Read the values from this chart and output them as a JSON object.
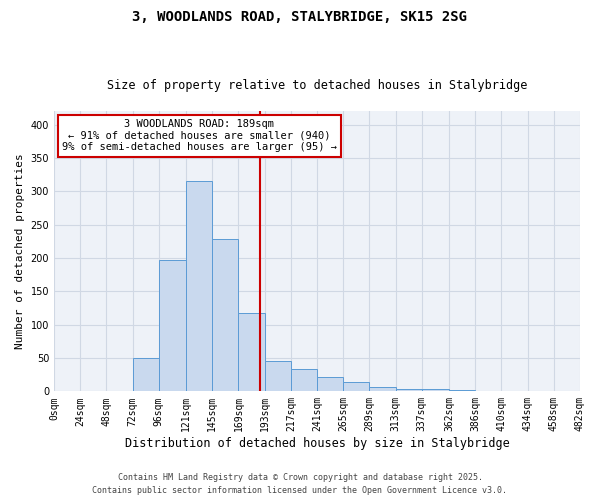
{
  "title": "3, WOODLANDS ROAD, STALYBRIDGE, SK15 2SG",
  "subtitle": "Size of property relative to detached houses in Stalybridge",
  "xlabel": "Distribution of detached houses by size in Stalybridge",
  "ylabel": "Number of detached properties",
  "bar_edges": [
    0,
    24,
    48,
    72,
    96,
    121,
    145,
    169,
    193,
    217,
    241,
    265,
    289,
    313,
    337,
    362,
    386,
    410,
    434,
    458,
    482
  ],
  "bar_heights": [
    0,
    0,
    0,
    50,
    197,
    316,
    229,
    117,
    46,
    33,
    22,
    14,
    7,
    3,
    4,
    2,
    1,
    0,
    0,
    1
  ],
  "bar_color": "#c9d9ee",
  "bar_edge_color": "#5b9bd5",
  "vline_x": 189,
  "vline_color": "#cc0000",
  "annotation_title": "3 WOODLANDS ROAD: 189sqm",
  "annotation_line2": "← 91% of detached houses are smaller (940)",
  "annotation_line3": "9% of semi-detached houses are larger (95) →",
  "annotation_box_color": "#cc0000",
  "xlim": [
    0,
    482
  ],
  "ylim": [
    0,
    420
  ],
  "yticks": [
    0,
    50,
    100,
    150,
    200,
    250,
    300,
    350,
    400
  ],
  "xtick_labels": [
    "0sqm",
    "24sqm",
    "48sqm",
    "72sqm",
    "96sqm",
    "121sqm",
    "145sqm",
    "169sqm",
    "193sqm",
    "217sqm",
    "241sqm",
    "265sqm",
    "289sqm",
    "313sqm",
    "337sqm",
    "362sqm",
    "386sqm",
    "410sqm",
    "434sqm",
    "458sqm",
    "482sqm"
  ],
  "xtick_positions": [
    0,
    24,
    48,
    72,
    96,
    121,
    145,
    169,
    193,
    217,
    241,
    265,
    289,
    313,
    337,
    362,
    386,
    410,
    434,
    458,
    482
  ],
  "grid_color": "#d0d8e4",
  "background_color": "#eef2f8",
  "footnote1": "Contains HM Land Registry data © Crown copyright and database right 2025.",
  "footnote2": "Contains public sector information licensed under the Open Government Licence v3.0.",
  "title_fontsize": 10,
  "subtitle_fontsize": 8.5,
  "xlabel_fontsize": 8.5,
  "ylabel_fontsize": 8,
  "tick_fontsize": 7,
  "annotation_fontsize": 7.5,
  "footnote_fontsize": 6.0
}
